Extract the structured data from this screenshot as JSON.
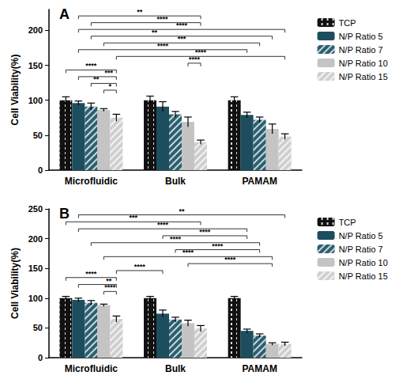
{
  "chart_data": [
    {
      "type": "bar",
      "title": "A",
      "y_label": "Cell Viability(%)",
      "categories": [
        "Microfluidic",
        "Bulk",
        "PAMAM"
      ],
      "series": [
        {
          "name": "TCP",
          "color": "#111111",
          "values": [
            100,
            100,
            100
          ],
          "errors": [
            5,
            6,
            5
          ]
        },
        {
          "name": "N/P Ratio 5",
          "color": "#1d4e5e",
          "values": [
            96,
            91,
            79
          ],
          "errors": [
            3,
            7,
            4
          ]
        },
        {
          "name": "N/P Ratio 7",
          "color": "#2b5f70",
          "values": [
            91,
            80,
            72
          ],
          "errors": [
            5,
            4,
            4
          ]
        },
        {
          "name": "N/P Ratio 10",
          "color": "#c4c4c4",
          "values": [
            86,
            69,
            59
          ],
          "errors": [
            2,
            7,
            7
          ]
        },
        {
          "name": "N/P Ratio 15",
          "color": "#cfcfcf",
          "values": [
            75,
            40,
            48
          ],
          "errors": [
            5,
            3,
            4
          ]
        }
      ],
      "ylim": [
        0,
        230
      ],
      "yticks": [
        0,
        50,
        100,
        150,
        200
      ],
      "grid": false,
      "legend": "right",
      "annotations": [
        {
          "from": [
            "Microfluidic",
            "N/P Ratio 5"
          ],
          "to": [
            "Bulk",
            "N/P Ratio 15"
          ],
          "text": "**"
        },
        {
          "from": [
            "Microfluidic",
            "N/P Ratio 7"
          ],
          "to": [
            "Bulk",
            "N/P Ratio 15"
          ],
          "text": "****"
        },
        {
          "from": [
            "Microfluidic",
            "N/P Ratio 5"
          ],
          "to": [
            "PAMAM",
            "N/P Ratio 15"
          ],
          "text": "****"
        },
        {
          "from": [
            "Microfluidic",
            "N/P Ratio 7"
          ],
          "to": [
            "PAMAM",
            "N/P Ratio 10"
          ],
          "text": "**"
        },
        {
          "from": [
            "Microfluidic",
            "N/P Ratio 10"
          ],
          "to": [
            "PAMAM",
            "N/P Ratio 7"
          ],
          "text": "***"
        },
        {
          "from": [
            "Microfluidic",
            "N/P Ratio 5"
          ],
          "to": [
            "PAMAM",
            "N/P Ratio 5"
          ],
          "text": "****"
        },
        {
          "from": [
            "Microfluidic",
            "N/P Ratio 15"
          ],
          "to": [
            "PAMAM",
            "N/P Ratio 15"
          ],
          "text": "****"
        },
        {
          "from": [
            "Bulk",
            "N/P Ratio 10"
          ],
          "to": [
            "Bulk",
            "N/P Ratio 15"
          ],
          "text": "****"
        },
        {
          "from": [
            "Microfluidic",
            "TCP"
          ],
          "to": [
            "Microfluidic",
            "N/P Ratio 15"
          ],
          "text": "****"
        },
        {
          "from": [
            "Microfluidic",
            "N/P Ratio 5"
          ],
          "to": [
            "Microfluidic",
            "N/P Ratio 15"
          ],
          "text": "***"
        },
        {
          "from": [
            "Microfluidic",
            "N/P Ratio 7"
          ],
          "to": [
            "Microfluidic",
            "N/P Ratio 15"
          ],
          "text": "**"
        },
        {
          "from": [
            "Microfluidic",
            "N/P Ratio 10"
          ],
          "to": [
            "Microfluidic",
            "N/P Ratio 15"
          ],
          "text": "*"
        }
      ]
    },
    {
      "type": "bar",
      "title": "B",
      "y_label": "Cell Viability(%)",
      "categories": [
        "Microfluidic",
        "Bulk",
        "PAMAM"
      ],
      "series": [
        {
          "name": "TCP",
          "color": "#111111",
          "values": [
            100,
            100,
            100
          ],
          "errors": [
            3,
            3,
            3
          ]
        },
        {
          "name": "N/P Ratio 5",
          "color": "#1d4e5e",
          "values": [
            97,
            74,
            45
          ],
          "errors": [
            3,
            6,
            3
          ]
        },
        {
          "name": "N/P Ratio 7",
          "color": "#2b5f70",
          "values": [
            92,
            64,
            37
          ],
          "errors": [
            4,
            4,
            3
          ]
        },
        {
          "name": "N/P Ratio 10",
          "color": "#c4c4c4",
          "values": [
            88,
            58,
            23
          ],
          "errors": [
            2,
            5,
            2
          ]
        },
        {
          "name": "N/P Ratio 15",
          "color": "#cfcfcf",
          "values": [
            65,
            49,
            23
          ],
          "errors": [
            5,
            5,
            3
          ]
        }
      ],
      "ylim": [
        0,
        250
      ],
      "yticks": [
        0,
        50,
        100,
        150,
        200,
        250
      ],
      "grid": false,
      "legend": "right",
      "annotations": [
        {
          "from": [
            "Microfluidic",
            "N/P Ratio 5"
          ],
          "to": [
            "PAMAM",
            "N/P Ratio 15"
          ],
          "text": "**"
        },
        {
          "from": [
            "Microfluidic",
            "TCP"
          ],
          "to": [
            "Bulk",
            "N/P Ratio 15"
          ],
          "text": "***"
        },
        {
          "from": [
            "Microfluidic",
            "N/P Ratio 5"
          ],
          "to": [
            "PAMAM",
            "N/P Ratio 5"
          ],
          "text": "****"
        },
        {
          "from": [
            "Bulk",
            "N/P Ratio 5"
          ],
          "to": [
            "PAMAM",
            "N/P Ratio 5"
          ],
          "text": "****"
        },
        {
          "from": [
            "Microfluidic",
            "N/P Ratio 7"
          ],
          "to": [
            "PAMAM",
            "N/P Ratio 7"
          ],
          "text": "****"
        },
        {
          "from": [
            "Bulk",
            "N/P Ratio 7"
          ],
          "to": [
            "PAMAM",
            "N/P Ratio 7"
          ],
          "text": "****"
        },
        {
          "from": [
            "Microfluidic",
            "N/P Ratio 10"
          ],
          "to": [
            "PAMAM",
            "N/P Ratio 10"
          ],
          "text": "****"
        },
        {
          "from": [
            "Bulk",
            "N/P Ratio 10"
          ],
          "to": [
            "PAMAM",
            "N/P Ratio 10"
          ],
          "text": "****"
        },
        {
          "from": [
            "Microfluidic",
            "N/P Ratio 15"
          ],
          "to": [
            "Bulk",
            "N/P Ratio 5"
          ],
          "text": "****"
        },
        {
          "from": [
            "Microfluidic",
            "TCP"
          ],
          "to": [
            "Microfluidic",
            "N/P Ratio 15"
          ],
          "text": "****"
        },
        {
          "from": [
            "Microfluidic",
            "N/P Ratio 5"
          ],
          "to": [
            "Microfluidic",
            "N/P Ratio 15"
          ],
          "text": "**"
        },
        {
          "from": [
            "Microfluidic",
            "N/P Ratio 10"
          ],
          "to": [
            "Microfluidic",
            "N/P Ratio 15"
          ],
          "text": "****"
        }
      ]
    }
  ]
}
